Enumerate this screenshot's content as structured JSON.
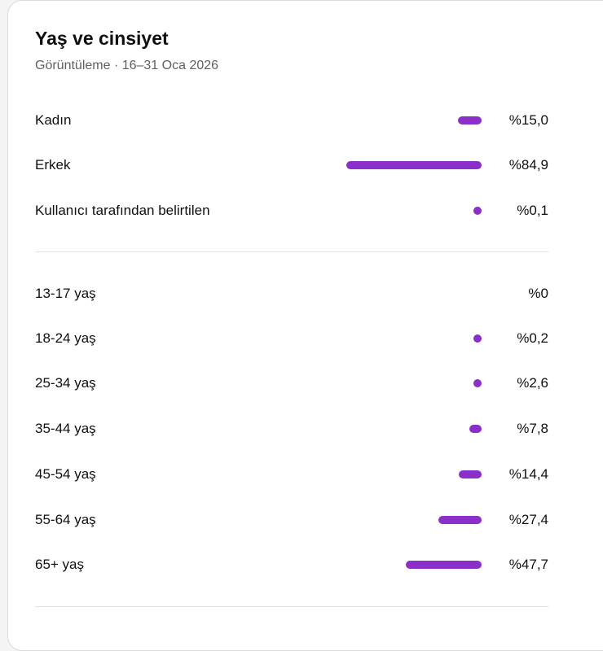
{
  "card": {
    "title": "Yaş ve cinsiyet",
    "subtitle": "Görüntüleme · 16–31 Oca 2026"
  },
  "colors": {
    "bar": "#8b2fc9"
  },
  "gender": [
    {
      "label": "Kadın",
      "value": "%15,0",
      "percent": 15.0
    },
    {
      "label": "Erkek",
      "value": "%84,9",
      "percent": 84.9
    },
    {
      "label": "Kullanıcı tarafından belirtilen",
      "value": "%0,1",
      "percent": 0.1
    }
  ],
  "age": [
    {
      "label": "13-17 yaş",
      "value": "%0",
      "percent": 0
    },
    {
      "label": "18-24 yaş",
      "value": "%0,2",
      "percent": 0.2
    },
    {
      "label": "25-34 yaş",
      "value": "%2,6",
      "percent": 2.6
    },
    {
      "label": "35-44 yaş",
      "value": "%7,8",
      "percent": 7.8
    },
    {
      "label": "45-54 yaş",
      "value": "%14,4",
      "percent": 14.4
    },
    {
      "label": "55-64 yaş",
      "value": "%27,4",
      "percent": 27.4
    },
    {
      "label": "65+ yaş",
      "value": "%47,7",
      "percent": 47.7
    }
  ]
}
